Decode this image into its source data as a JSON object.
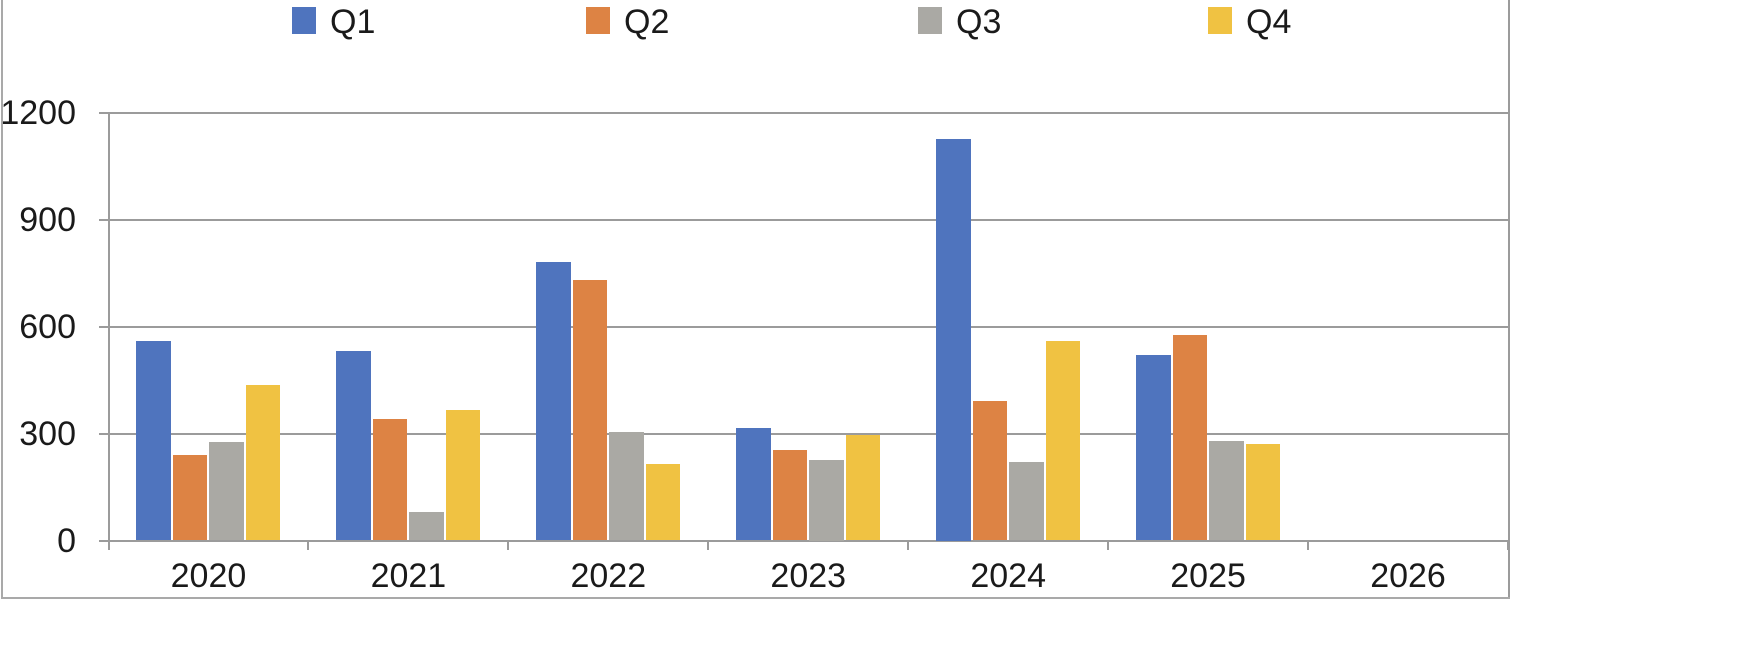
{
  "chart_data": {
    "type": "bar",
    "title": "",
    "categories": [
      "2020",
      "2021",
      "2022",
      "2023",
      "2024",
      "2025",
      "2026"
    ],
    "series": [
      {
        "name": "Q1",
        "color": "#4F74BE",
        "values": [
          560,
          530,
          780,
          315,
          1125,
          520,
          0
        ]
      },
      {
        "name": "Q2",
        "color": "#DD8344",
        "values": [
          240,
          340,
          730,
          255,
          390,
          575,
          0
        ]
      },
      {
        "name": "Q3",
        "color": "#AAA9A4",
        "values": [
          275,
          80,
          305,
          225,
          220,
          280,
          0
        ]
      },
      {
        "name": "Q4",
        "color": "#F0C242",
        "values": [
          435,
          365,
          215,
          295,
          560,
          270,
          0
        ]
      }
    ],
    "xlabel": "",
    "ylabel": "",
    "ylim": [
      0,
      1200
    ],
    "yticks": [
      0,
      300,
      600,
      900,
      1200
    ],
    "ytick_labels": [
      "0",
      "300",
      "600",
      "900",
      "1200"
    ],
    "grid": true,
    "legend_position": "top",
    "legend_labels": [
      "Q1",
      "Q2",
      "Q3",
      "Q4"
    ],
    "axis_color": "#9b9b9b",
    "frame_color": "#a9a9a9",
    "text_color": "#1a1a1a",
    "background_color": "#ffffff"
  }
}
